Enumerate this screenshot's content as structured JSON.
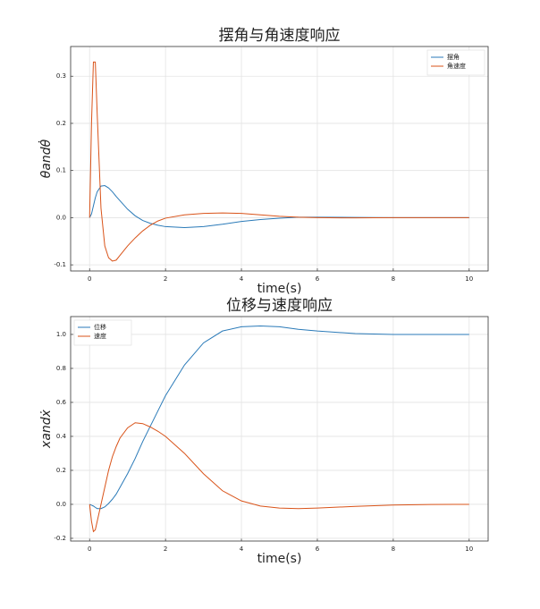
{
  "chart_data": [
    {
      "type": "line",
      "title": "摆角与角速度响应",
      "x_label": "time(s)",
      "y_label": "θandθ̇",
      "x": [
        0,
        0.05,
        0.1,
        0.15,
        0.2,
        0.3,
        0.4,
        0.5,
        0.6,
        0.7,
        0.8,
        1.0,
        1.2,
        1.4,
        1.6,
        1.8,
        2.0,
        2.5,
        3,
        3.5,
        4,
        4.5,
        5,
        5.5,
        6,
        7,
        8,
        9,
        10
      ],
      "series": [
        {
          "name": "摆角",
          "color": "#2a7ab8",
          "values": [
            0,
            0.008,
            0.025,
            0.042,
            0.055,
            0.067,
            0.068,
            0.063,
            0.055,
            0.045,
            0.036,
            0.018,
            0.004,
            -0.006,
            -0.012,
            -0.016,
            -0.019,
            -0.021,
            -0.019,
            -0.014,
            -0.008,
            -0.004,
            -0.001,
            0.001,
            0.001,
            0.0005,
            0,
            0,
            0
          ]
        },
        {
          "name": "角速度",
          "color": "#d95319",
          "values": [
            0,
            0.2,
            0.33,
            0.33,
            0.22,
            0.02,
            -0.06,
            -0.085,
            -0.092,
            -0.09,
            -0.08,
            -0.06,
            -0.043,
            -0.028,
            -0.016,
            -0.007,
            -0.001,
            0.006,
            0.009,
            0.01,
            0.009,
            0.006,
            0.003,
            0.001,
            0,
            -0.0005,
            0,
            0,
            0
          ]
        }
      ],
      "xlim": [
        -0.5,
        10.5
      ],
      "xticks": [
        0,
        2,
        4,
        6,
        8,
        10
      ],
      "ylim": [
        -0.113,
        0.363
      ],
      "yticks": [
        -0.1,
        {
          "value": 0,
          "label": "0.0"
        },
        0.1,
        0.2,
        0.3
      ],
      "grid": true,
      "legend": "upper right"
    },
    {
      "type": "line",
      "title": "位移与速度响应",
      "x_label": "time(s)",
      "y_label": "xandẋ",
      "x": [
        0,
        0.05,
        0.1,
        0.15,
        0.2,
        0.3,
        0.4,
        0.5,
        0.6,
        0.7,
        0.8,
        1.0,
        1.2,
        1.4,
        1.6,
        1.8,
        2.0,
        2.5,
        3,
        3.5,
        4,
        4.5,
        5,
        5.5,
        6,
        7,
        8,
        9,
        10
      ],
      "series": [
        {
          "name": "位移",
          "color": "#2a7ab8",
          "values": [
            0,
            -0.005,
            -0.01,
            -0.018,
            -0.025,
            -0.025,
            -0.015,
            0.005,
            0.03,
            0.06,
            0.1,
            0.18,
            0.27,
            0.37,
            0.46,
            0.55,
            0.64,
            0.82,
            0.95,
            1.02,
            1.045,
            1.05,
            1.045,
            1.03,
            1.02,
            1.005,
            1.0,
            1.0,
            1.0
          ]
        },
        {
          "name": "速度",
          "color": "#d95319",
          "values": [
            0,
            -0.1,
            -0.16,
            -0.15,
            -0.1,
            0.0,
            0.1,
            0.2,
            0.28,
            0.34,
            0.39,
            0.45,
            0.48,
            0.475,
            0.455,
            0.43,
            0.4,
            0.3,
            0.18,
            0.08,
            0.02,
            -0.01,
            -0.022,
            -0.025,
            -0.022,
            -0.012,
            -0.004,
            -0.001,
            0
          ]
        }
      ],
      "xlim": [
        -0.5,
        10.5
      ],
      "xticks": [
        0,
        2,
        4,
        6,
        8,
        10
      ],
      "ylim": [
        -0.216,
        1.105
      ],
      "yticks": [
        -0.2,
        {
          "value": 0,
          "label": "0.0"
        },
        0.2,
        0.4,
        0.6,
        0.8,
        {
          "value": 1,
          "label": "1.0"
        }
      ],
      "grid": true,
      "legend": "upper left"
    }
  ]
}
